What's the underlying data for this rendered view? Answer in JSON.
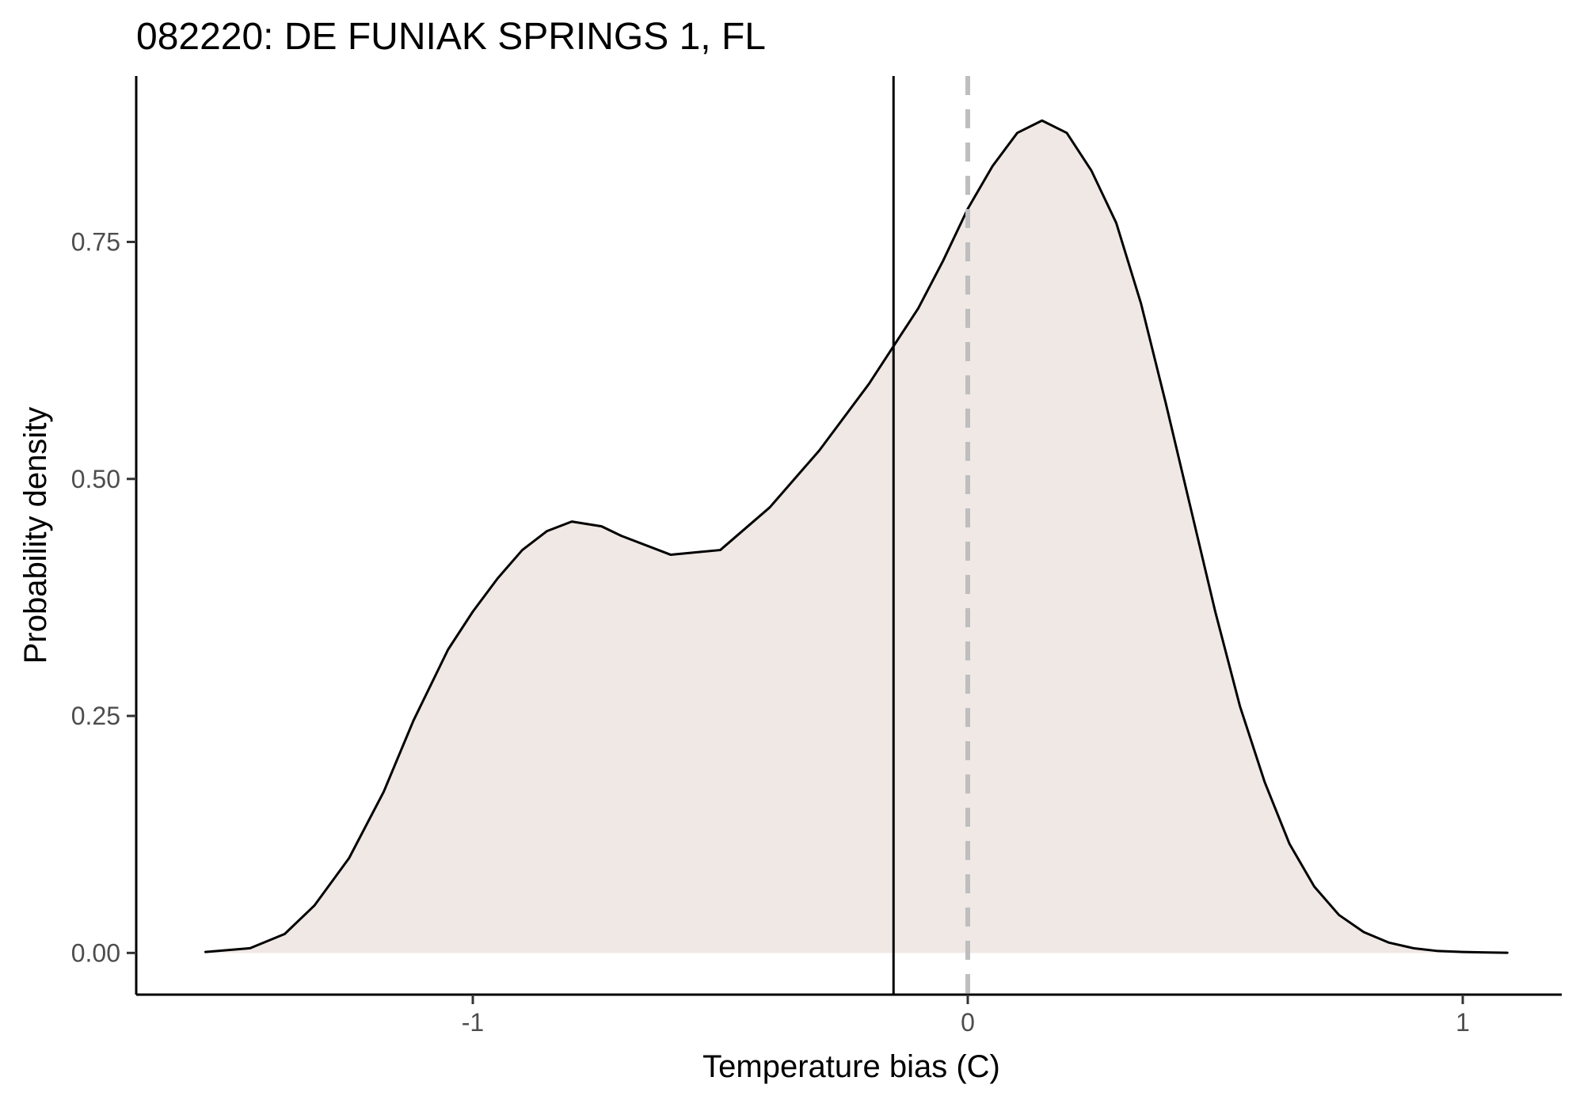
{
  "chart_data": {
    "type": "area",
    "title": "082220: DE FUNIAK SPRINGS 1, FL",
    "xlabel": "Temperature bias (C)",
    "ylabel": "Probability density",
    "xlim": [
      -1.68,
      1.2
    ],
    "ylim": [
      -0.044,
      0.925
    ],
    "x_ticks": [
      {
        "value": -1,
        "label": "-1"
      },
      {
        "value": 0,
        "label": "0"
      },
      {
        "value": 1,
        "label": "1"
      }
    ],
    "y_ticks": [
      {
        "value": 0.0,
        "label": "0.00"
      },
      {
        "value": 0.25,
        "label": "0.25"
      },
      {
        "value": 0.5,
        "label": "0.50"
      },
      {
        "value": 0.75,
        "label": "0.75"
      }
    ],
    "series": [
      {
        "x": [
          -1.54,
          -1.45,
          -1.38,
          -1.32,
          -1.25,
          -1.18,
          -1.12,
          -1.05,
          -1.0,
          -0.95,
          -0.9,
          -0.85,
          -0.8,
          -0.74,
          -0.7,
          -0.6,
          -0.5,
          -0.4,
          -0.3,
          -0.2,
          -0.15,
          -0.1,
          -0.05,
          0.0,
          0.05,
          0.1,
          0.15,
          0.2,
          0.25,
          0.3,
          0.35,
          0.4,
          0.45,
          0.5,
          0.55,
          0.6,
          0.65,
          0.7,
          0.75,
          0.8,
          0.85,
          0.9,
          0.95,
          1.0,
          1.05,
          1.09
        ],
        "y": [
          0.001,
          0.005,
          0.02,
          0.05,
          0.1,
          0.17,
          0.245,
          0.32,
          0.36,
          0.395,
          0.425,
          0.445,
          0.455,
          0.45,
          0.44,
          0.42,
          0.425,
          0.47,
          0.53,
          0.6,
          0.64,
          0.68,
          0.73,
          0.785,
          0.83,
          0.865,
          0.878,
          0.865,
          0.825,
          0.77,
          0.685,
          0.58,
          0.47,
          0.36,
          0.26,
          0.18,
          0.115,
          0.07,
          0.04,
          0.022,
          0.011,
          0.005,
          0.002,
          0.001,
          0.0005,
          0.0002
        ],
        "fill_color": "#efe8e5",
        "line_color": "#000000"
      }
    ],
    "reference_lines": [
      {
        "x": -0.15,
        "style": "solid",
        "color": "#000000"
      },
      {
        "x": 0.0,
        "style": "dashed",
        "color": "#bebebe"
      }
    ],
    "grid": false,
    "legend": "none"
  }
}
